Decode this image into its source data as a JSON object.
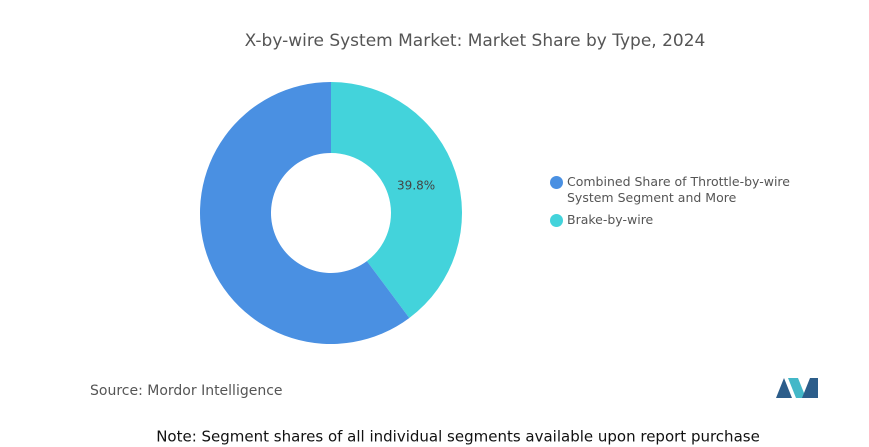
{
  "chart_data": {
    "type": "donut",
    "title": "X-by-wire System Market: Market Share by Type, 2024",
    "series": [
      {
        "name": "Combined Share of Throttle-by-wire System Segment and More",
        "color": "#4a90e2",
        "value": 60.2
      },
      {
        "name": "Brake-by-wire",
        "color": "#43d3db",
        "value": 39.8,
        "value_label": "39.8%"
      }
    ],
    "source": "Source:  Mordor Intelligence",
    "note": "Note: Segment shares of all individual segments available upon report purchase"
  }
}
